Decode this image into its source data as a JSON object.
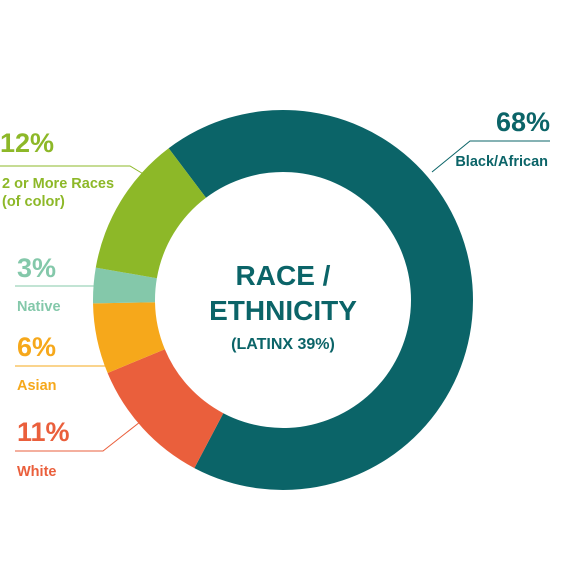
{
  "chart_data": {
    "type": "pie",
    "title_lines": [
      "RACE /",
      "ETHNICITY"
    ],
    "subtitle": "(LATINX 39%)",
    "series": [
      {
        "values": [
          68,
          11,
          6,
          3,
          12
        ],
        "categories": [
          "Black/African",
          "White",
          "Asian",
          "Native",
          [
            "2 or More Races",
            "(of color)"
          ]
        ],
        "percent_labels": [
          "68%",
          "11%",
          "6%",
          "3%",
          "12%"
        ],
        "colors": [
          "#0b6468",
          "#ea5f3c",
          "#f6a81b",
          "#84c8aa",
          "#8db828"
        ]
      }
    ]
  }
}
